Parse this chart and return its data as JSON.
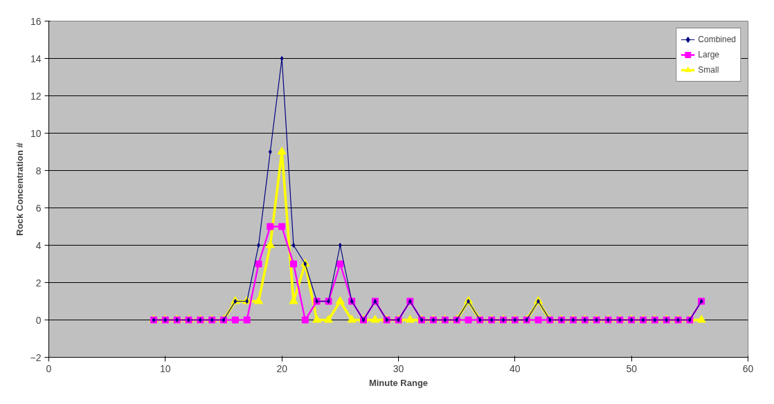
{
  "chart_data": {
    "type": "line",
    "xlabel": "Minute Range",
    "ylabel": "Rock Concentration #",
    "xlim": [
      0,
      60
    ],
    "xticks": [
      0,
      10,
      20,
      30,
      40,
      50,
      60
    ],
    "ylim": [
      -2,
      16
    ],
    "yticks": [
      -2,
      0,
      2,
      4,
      6,
      8,
      10,
      12,
      14,
      16
    ],
    "grid": "y",
    "legend": "top right",
    "line_style": "solid",
    "x": [
      9,
      10,
      11,
      12,
      13,
      14,
      15,
      16,
      17,
      18,
      19,
      20,
      21,
      22,
      23,
      24,
      25,
      26,
      27,
      28,
      29,
      30,
      31,
      32,
      33,
      34,
      35,
      36,
      37,
      38,
      39,
      40,
      41,
      42,
      43,
      44,
      45,
      46,
      47,
      48,
      49,
      50,
      51,
      52,
      53,
      54,
      55,
      56
    ],
    "series": [
      {
        "name": "Combined",
        "color": "#000080",
        "marker": "diamond",
        "values": [
          0,
          0,
          0,
          0,
          0,
          0,
          0,
          1,
          1,
          4,
          9,
          14,
          4,
          3,
          1,
          1,
          4,
          1,
          0,
          1,
          0,
          0,
          1,
          0,
          0,
          0,
          0,
          1,
          0,
          0,
          0,
          0,
          0,
          1,
          0,
          0,
          0,
          0,
          0,
          0,
          0,
          0,
          0,
          0,
          0,
          0,
          0,
          1
        ]
      },
      {
        "name": "Large",
        "color": "#ff00ff",
        "marker": "square",
        "values": [
          0,
          0,
          0,
          0,
          0,
          0,
          0,
          0,
          0,
          3,
          5,
          5,
          3,
          0,
          1,
          1,
          3,
          1,
          0,
          1,
          0,
          0,
          1,
          0,
          0,
          0,
          0,
          0,
          0,
          0,
          0,
          0,
          0,
          0,
          0,
          0,
          0,
          0,
          0,
          0,
          0,
          0,
          0,
          0,
          0,
          0,
          0,
          1
        ]
      },
      {
        "name": "Small",
        "color": "#ffff00",
        "marker": "triangle",
        "values": [
          0,
          0,
          0,
          0,
          0,
          0,
          0,
          1,
          1,
          1,
          4,
          9,
          1,
          3,
          0,
          0,
          1,
          0,
          0,
          0,
          0,
          0,
          0,
          0,
          0,
          0,
          0,
          1,
          0,
          0,
          0,
          0,
          0,
          1,
          0,
          0,
          0,
          0,
          0,
          0,
          0,
          0,
          0,
          0,
          0,
          0,
          0,
          0
        ]
      }
    ]
  }
}
